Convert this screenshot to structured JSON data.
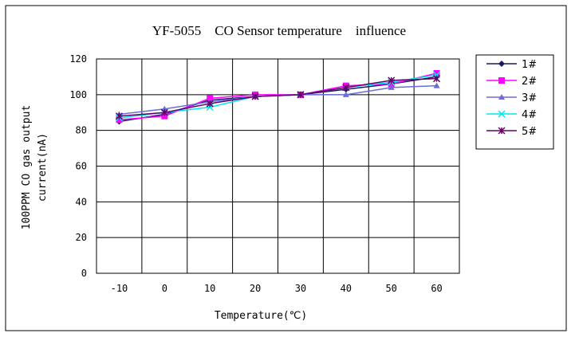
{
  "chart_data": {
    "type": "line",
    "title": "YF-5055    CO Sensor temperature    influence",
    "xlabel": "Temperature(℃)",
    "ylabel": "100PPM CO gas output current(nA)",
    "ylabel_lines": [
      "100PPM CO gas output",
      "current(nA)"
    ],
    "categories": [
      -10,
      0,
      10,
      20,
      30,
      40,
      50,
      60
    ],
    "ylim": [
      0,
      120
    ],
    "yticks": [
      0,
      20,
      40,
      60,
      80,
      100,
      120
    ],
    "grid": true,
    "legend_position": "right",
    "series": [
      {
        "name": "1#",
        "color": "#1a1a66",
        "marker": "diamond",
        "values": [
          85,
          89,
          97,
          99,
          100,
          103,
          106,
          110
        ]
      },
      {
        "name": "2#",
        "color": "#ff00ff",
        "marker": "square",
        "values": [
          86,
          88,
          98,
          100,
          100,
          105,
          106,
          112
        ]
      },
      {
        "name": "3#",
        "color": "#6b6bdb",
        "marker": "triangle",
        "values": [
          89,
          92,
          96,
          99,
          100,
          100,
          104,
          105
        ]
      },
      {
        "name": "4#",
        "color": "#00e5ee",
        "marker": "x",
        "values": [
          87,
          90,
          93,
          99,
          100,
          104,
          107,
          111
        ]
      },
      {
        "name": "5#",
        "color": "#660066",
        "marker": "star",
        "values": [
          88,
          90,
          95,
          99,
          100,
          104,
          108,
          109
        ]
      }
    ]
  }
}
